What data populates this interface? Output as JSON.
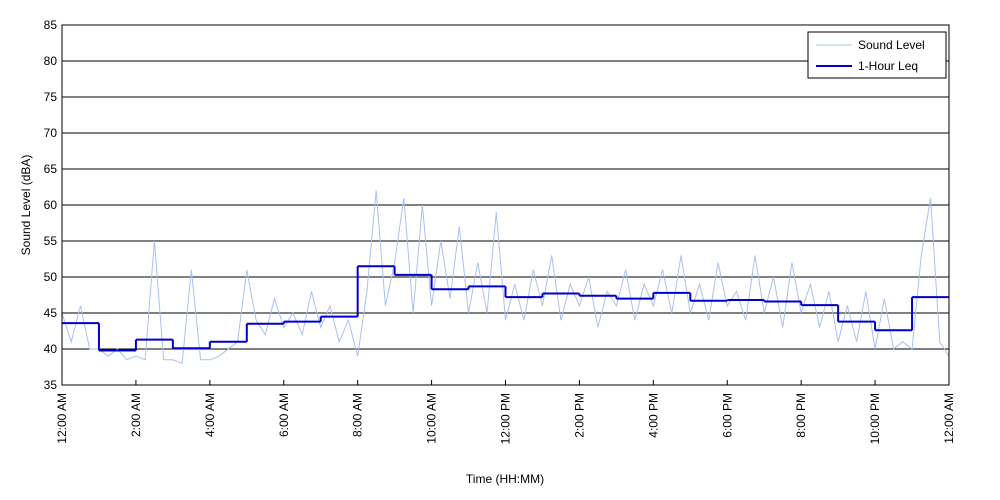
{
  "chart_data": {
    "type": "line",
    "x_label": "Time (HH:MM)",
    "y_label": "Sound Level (dBA)",
    "xlim": [
      0,
      24
    ],
    "ylim": [
      35,
      85
    ],
    "yticks": [
      35,
      40,
      45,
      50,
      55,
      60,
      65,
      70,
      75,
      80,
      85
    ],
    "xticks": [
      {
        "value": 0,
        "label": "12:00 AM"
      },
      {
        "value": 2,
        "label": "2:00 AM"
      },
      {
        "value": 4,
        "label": "4:00 AM"
      },
      {
        "value": 6,
        "label": "6:00 AM"
      },
      {
        "value": 8,
        "label": "8:00 AM"
      },
      {
        "value": 10,
        "label": "10:00 AM"
      },
      {
        "value": 12,
        "label": "12:00 PM"
      },
      {
        "value": 14,
        "label": "2:00 PM"
      },
      {
        "value": 16,
        "label": "4:00 PM"
      },
      {
        "value": 18,
        "label": "6:00 PM"
      },
      {
        "value": 20,
        "label": "8:00 PM"
      },
      {
        "value": 22,
        "label": "10:00 PM"
      },
      {
        "value": 24,
        "label": "12:00 AM"
      }
    ],
    "grid": true,
    "legend": "top-right",
    "series": [
      {
        "name": "Sound Level",
        "color": "#a9c1f0",
        "style": "line",
        "x": [
          0,
          0.25,
          0.5,
          0.75,
          1,
          1.25,
          1.5,
          1.75,
          2,
          2.25,
          2.5,
          2.75,
          3,
          3.25,
          3.5,
          3.75,
          4,
          4.25,
          4.5,
          4.75,
          5,
          5.25,
          5.5,
          5.75,
          6,
          6.25,
          6.5,
          6.75,
          7,
          7.25,
          7.5,
          7.75,
          8,
          8.25,
          8.5,
          8.75,
          9,
          9.25,
          9.5,
          9.75,
          10,
          10.25,
          10.5,
          10.75,
          11,
          11.25,
          11.5,
          11.75,
          12,
          12.25,
          12.5,
          12.75,
          13,
          13.25,
          13.5,
          13.75,
          14,
          14.25,
          14.5,
          14.75,
          15,
          15.25,
          15.5,
          15.75,
          16,
          16.25,
          16.5,
          16.75,
          17,
          17.25,
          17.5,
          17.75,
          18,
          18.25,
          18.5,
          18.75,
          19,
          19.25,
          19.5,
          19.75,
          20,
          20.25,
          20.5,
          20.75,
          21,
          21.25,
          21.5,
          21.75,
          22,
          22.25,
          22.5,
          22.75,
          23,
          23.25,
          23.5,
          23.75,
          24
        ],
        "values": [
          45,
          41,
          46,
          40,
          40,
          39,
          40,
          38.5,
          39,
          38.5,
          55,
          38.5,
          38.5,
          38,
          51,
          38.5,
          38.5,
          39,
          40,
          41,
          51,
          44,
          42,
          47,
          43,
          45,
          42,
          48,
          43,
          46,
          41,
          44,
          39,
          48,
          62,
          46,
          52,
          61,
          45,
          60,
          46,
          55,
          47,
          57,
          45,
          52,
          45,
          59,
          44,
          49,
          44,
          51,
          46,
          53,
          44,
          49,
          46,
          50,
          43,
          48,
          46,
          51,
          44,
          49,
          46,
          51,
          45,
          53,
          45,
          49,
          44,
          52,
          46,
          48,
          44,
          53,
          45,
          50,
          43,
          52,
          45,
          49,
          43,
          48,
          41,
          46,
          41,
          48,
          40,
          47,
          40,
          41,
          40,
          53,
          61,
          41,
          39
        ]
      },
      {
        "name": "1-Hour Leq",
        "color": "#0000cc",
        "style": "step",
        "x": [
          0,
          1,
          2,
          3,
          4,
          5,
          6,
          7,
          8,
          9,
          10,
          11,
          12,
          13,
          14,
          15,
          16,
          17,
          18,
          19,
          20,
          21,
          22,
          23
        ],
        "values": [
          43.6,
          39.8,
          41.3,
          40.1,
          41.0,
          43.5,
          43.8,
          44.5,
          51.5,
          50.3,
          48.3,
          48.7,
          47.2,
          47.7,
          47.4,
          47.0,
          47.8,
          46.7,
          46.8,
          46.6,
          46.1,
          43.8,
          42.6,
          47.2
        ]
      }
    ]
  }
}
